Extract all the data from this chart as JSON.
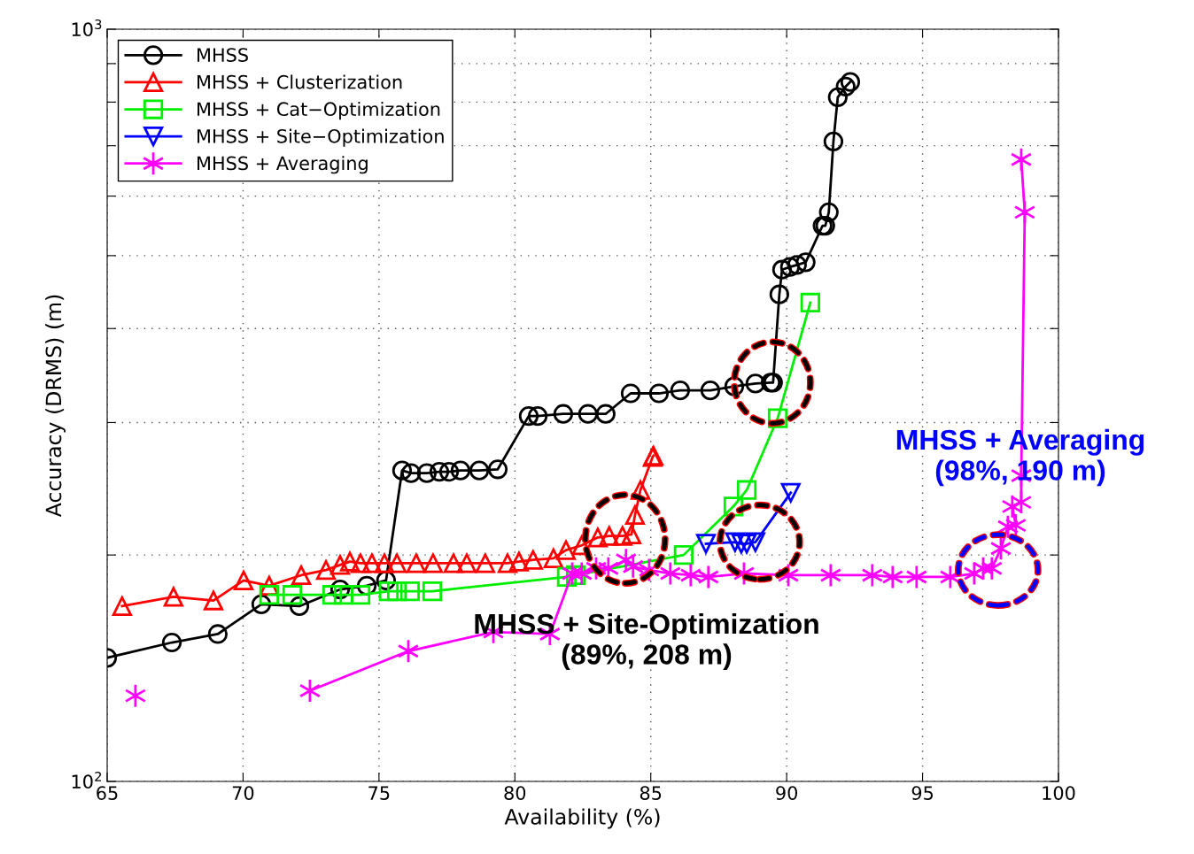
{
  "chart_data": {
    "type": "line",
    "xlabel": "Availability (%)",
    "ylabel": "Accuracy (DRMS) (m)",
    "xlim": [
      65,
      100
    ],
    "xticks": [
      65,
      70,
      75,
      80,
      85,
      90,
      95,
      100
    ],
    "ylim": [
      100,
      1000
    ],
    "log": "y",
    "yticks": [
      {
        "value": 100,
        "label": "10$^{2}$"
      },
      {
        "value": 200,
        "label": null
      },
      {
        "value": 300,
        "label": null
      },
      {
        "value": 400,
        "label": null
      },
      {
        "value": 500,
        "label": null
      },
      {
        "value": 600,
        "label": null
      },
      {
        "value": 700,
        "label": null
      },
      {
        "value": 800,
        "label": null
      },
      {
        "value": 900,
        "label": null
      },
      {
        "value": 1000,
        "label": "10$^{3}$"
      }
    ],
    "grid": true,
    "legend": "top left",
    "line_style": "solid",
    "series": [
      {
        "name": "MHSS",
        "color": "#000000",
        "marker": "circle",
        "x": [
          65.0,
          67.38,
          69.07,
          70.67,
          72.07,
          73.57,
          74.55,
          75.26,
          75.85,
          76.18,
          76.76,
          77.22,
          77.58,
          78.0,
          78.69,
          79.37,
          80.51,
          80.84,
          81.78,
          82.69,
          83.34,
          84.26,
          85.3,
          86.08,
          87.19,
          88.07,
          88.85,
          89.41,
          89.5,
          89.73,
          89.83,
          90.12,
          90.38,
          90.7,
          91.32,
          91.42,
          91.55,
          91.72,
          91.88,
          92.17,
          92.34
        ],
        "values": [
          146,
          153,
          157,
          172,
          171,
          180,
          182,
          185,
          259,
          257,
          257,
          258,
          258,
          259,
          259,
          260,
          306,
          306,
          308,
          308,
          308,
          328,
          328,
          331,
          331,
          335,
          338,
          339,
          339,
          444,
          479,
          483,
          486,
          490,
          548,
          548,
          571,
          709,
          812,
          839,
          851
        ]
      },
      {
        "name": "MHSS + Clusterization",
        "color": "#ff0000",
        "marker": "triangle",
        "x": [
          65.55,
          67.44,
          68.91,
          70.02,
          70.96,
          72.14,
          73.05,
          73.57,
          73.93,
          74.32,
          74.74,
          75.2,
          75.66,
          76.37,
          76.99,
          77.74,
          78.23,
          78.91,
          79.73,
          80.15,
          80.67,
          81.42,
          81.88,
          82.46,
          83.05,
          83.47,
          83.96,
          84.29,
          84.42,
          84.62,
          85.07,
          85.1
        ],
        "values": [
          171,
          176,
          174,
          185,
          182,
          188,
          191,
          194,
          196,
          195,
          195,
          195,
          195,
          195,
          195,
          195,
          195,
          195,
          195,
          196,
          197,
          198,
          203,
          206,
          211,
          212,
          212,
          213,
          226,
          244,
          270,
          271
        ]
      },
      {
        "name": "MHSS + Cat−Optimization",
        "color": "#00ee00",
        "marker": "square",
        "x": [
          70.96,
          71.81,
          73.28,
          73.7,
          74.32,
          75.36,
          75.66,
          76.14,
          76.96,
          81.91,
          82.24,
          86.21,
          88.04,
          88.53,
          89.67,
          90.87
        ],
        "values": [
          177,
          177,
          177,
          177,
          177,
          179,
          179,
          179,
          179,
          187,
          188,
          200,
          232,
          244,
          304,
          433
        ]
      },
      {
        "name": "MHSS + Site−Optimization",
        "color": "#0000ff",
        "marker": "triangle_down",
        "x": [
          87.03,
          88.1,
          88.33,
          88.53,
          88.85,
          90.15
        ],
        "values": [
          207,
          208,
          207,
          207,
          208,
          242
        ]
      },
      {
        "name": "MHSS + Averaging",
        "color": "#ff00ff",
        "marker": "cross",
        "x": [
          66.04,
          69.0,
          72.46,
          76.08,
          79.21,
          81.29,
          82.11,
          82.46,
          82.99,
          83.44,
          84.09,
          84.35,
          84.94,
          85.72,
          86.47,
          87.12,
          88.43,
          90.06,
          91.62,
          93.15,
          93.9,
          94.78,
          96.02,
          96.9,
          97.23,
          97.55,
          97.88,
          98.14,
          98.43,
          98.3,
          98.63,
          98.63,
          98.76,
          98.63
        ],
        "values": [
          130,
          null,
          132,
          149,
          158,
          157,
          189,
          189,
          192,
          192,
          197,
          193,
          191,
          189,
          188,
          187,
          189,
          188,
          188,
          188,
          187,
          187,
          187,
          189,
          192,
          192,
          204,
          218,
          219,
          232,
          235,
          255,
          571,
          671
        ]
      }
    ],
    "annotations": [
      "MHSS + Site-Optimization\n(89%, 208 m)",
      "MHSS + Averaging\n(98%, 190 m)"
    ]
  }
}
